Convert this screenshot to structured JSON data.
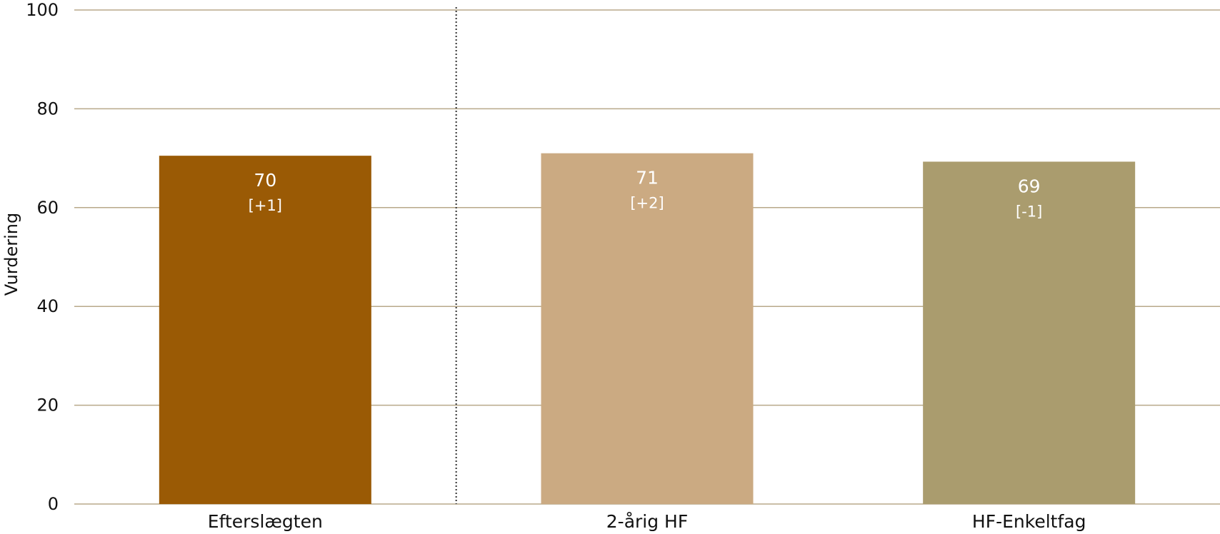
{
  "chart_data": {
    "type": "bar",
    "ylabel": "Vurdering",
    "ylim": [
      0,
      100
    ],
    "yticks": [
      0,
      20,
      40,
      60,
      80,
      100
    ],
    "categories": [
      "Efterslægten",
      "2-årig HF",
      "HF-Enkeltfag"
    ],
    "values": [
      70.5,
      71.0,
      69.3
    ],
    "value_labels": [
      "70",
      "71",
      "69"
    ],
    "change_labels": [
      "[+1]",
      "[+2]",
      "[-1]"
    ],
    "colors": [
      "#9a5a05",
      "#cbaa82",
      "#aa9c6e"
    ],
    "grid": true,
    "gridline_color": "#b8a98a",
    "separator_after_category": 0
  }
}
